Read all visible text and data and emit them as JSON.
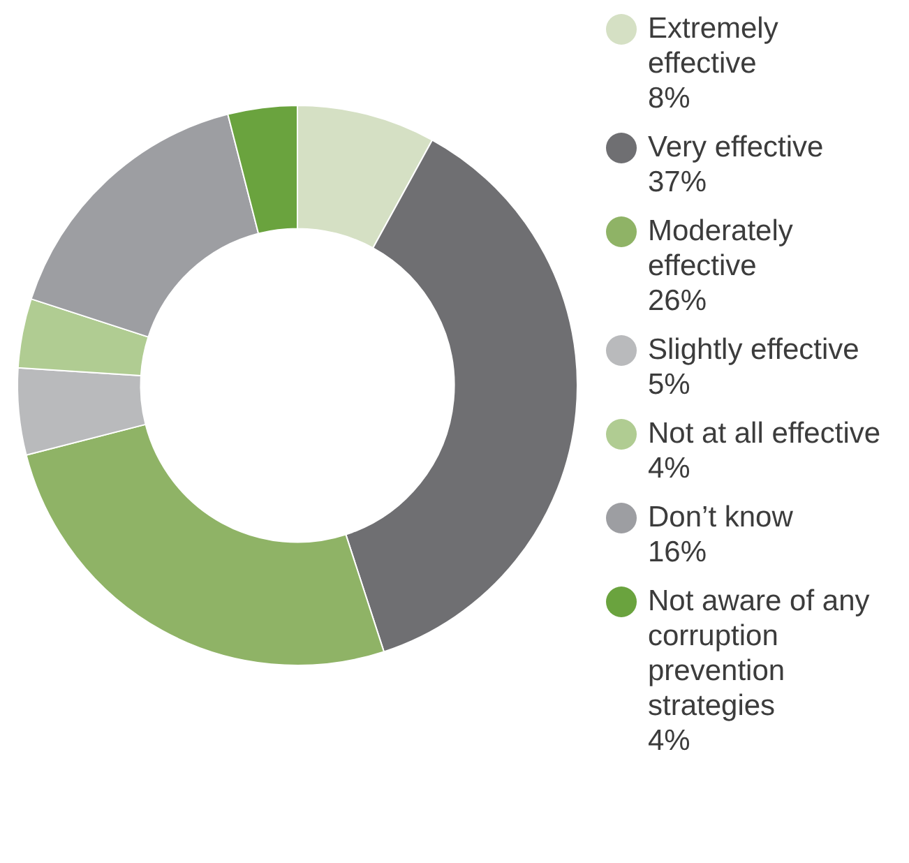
{
  "chart_data": {
    "type": "donut",
    "categories": [
      "Extremely effective",
      "Very effective",
      "Moderately effective",
      "Slightly effective",
      "Not at all effective",
      "Don’t know",
      "Not aware of any corruption prevention strategies"
    ],
    "values": [
      8,
      37,
      26,
      5,
      4,
      16,
      4
    ],
    "value_labels": [
      "8%",
      "37%",
      "26%",
      "5%",
      "4%",
      "16%",
      "4%"
    ],
    "colors": [
      "#d5e0c4",
      "#6f6f72",
      "#8fb366",
      "#b9babc",
      "#b0cc92",
      "#9d9ea2",
      "#6aa33e"
    ],
    "legend": "right"
  }
}
